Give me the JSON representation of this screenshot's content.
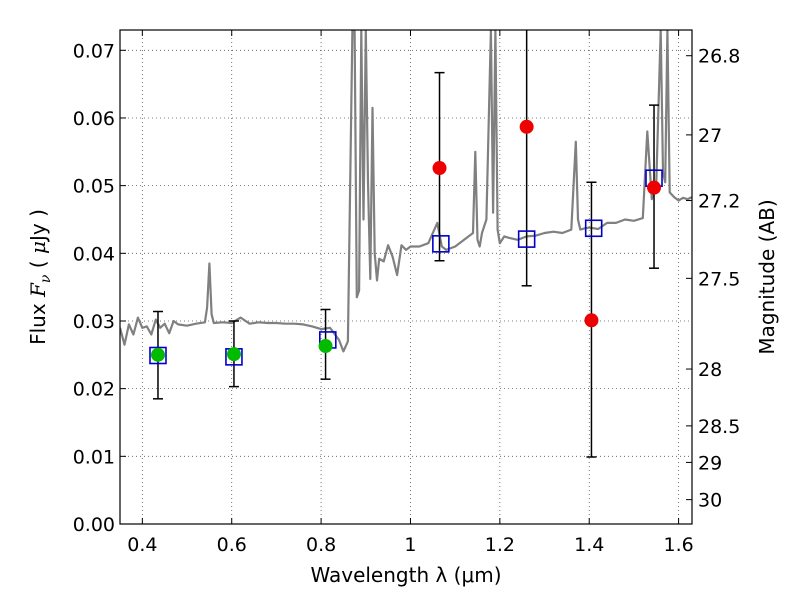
{
  "chart_data": {
    "type": "scatter",
    "xlabel": "Wavelength  λ (μm)",
    "ylabel": "Flux  F_ν  ( μJy )",
    "ylabel_right": "Magnitude (AB)",
    "xlim": [
      0.35,
      1.63
    ],
    "ylim": [
      0.0,
      0.073
    ],
    "grid": true,
    "x_ticks": [
      0.4,
      0.6,
      0.8,
      1.0,
      1.2,
      1.4,
      1.6
    ],
    "x_tick_labels": [
      "0.4",
      "0.6",
      "0.8",
      "1",
      "1.2",
      "1.4",
      "1.6"
    ],
    "y_ticks": [
      0.0,
      0.01,
      0.02,
      0.03,
      0.04,
      0.05,
      0.06,
      0.07
    ],
    "y_tick_labels": [
      "0.00",
      "0.01",
      "0.02",
      "0.03",
      "0.04",
      "0.05",
      "0.06",
      "0.07"
    ],
    "right_ticks": [
      {
        "label": "26.8",
        "flux": 0.0692
      },
      {
        "label": "27",
        "flux": 0.0575
      },
      {
        "label": "27.2",
        "flux": 0.0478
      },
      {
        "label": "27.5",
        "flux": 0.0363
      },
      {
        "label": "28",
        "flux": 0.0229
      },
      {
        "label": "28.5",
        "flux": 0.0145
      },
      {
        "label": "29",
        "flux": 0.0091
      },
      {
        "label": "30",
        "flux": 0.0036
      }
    ],
    "colors": {
      "spectrum": "#808080",
      "errorbar": "#000000",
      "green": "#00bb00",
      "red": "#ee0000",
      "square": "#0000cc",
      "grid": "#555555"
    },
    "series": [
      {
        "marker": "square",
        "x": [
          0.435,
          0.605,
          0.815,
          1.068,
          1.26,
          1.41,
          1.545
        ],
        "y": [
          0.0249,
          0.0247,
          0.0272,
          0.0414,
          0.0421,
          0.0437,
          0.0511
        ]
      },
      {
        "marker": "circle-green",
        "x": [
          0.435,
          0.605,
          0.81
        ],
        "y": [
          0.025,
          0.0251,
          0.0263
        ],
        "err_low": [
          0.0185,
          0.0203,
          0.0214
        ],
        "err_high": [
          0.0314,
          0.03,
          0.0317
        ]
      },
      {
        "marker": "circle-red",
        "x": [
          1.065,
          1.26,
          1.405,
          1.545
        ],
        "y": [
          0.0526,
          0.0587,
          0.0301,
          0.0497
        ],
        "err_low": [
          0.0389,
          0.0352,
          0.0099,
          0.0378
        ],
        "err_high": [
          0.0667,
          0.0735,
          0.0505,
          0.0619
        ]
      },
      {
        "marker": "line",
        "x": [
          0.35,
          0.36,
          0.37,
          0.38,
          0.39,
          0.4,
          0.41,
          0.42,
          0.43,
          0.44,
          0.45,
          0.46,
          0.47,
          0.48,
          0.5,
          0.52,
          0.54,
          0.545,
          0.55,
          0.555,
          0.56,
          0.58,
          0.6,
          0.62,
          0.64,
          0.66,
          0.68,
          0.7,
          0.72,
          0.74,
          0.76,
          0.78,
          0.8,
          0.82,
          0.84,
          0.85,
          0.86,
          0.87,
          0.875,
          0.88,
          0.885,
          0.89,
          0.895,
          0.9,
          0.905,
          0.91,
          0.915,
          0.92,
          0.925,
          0.93,
          0.94,
          0.95,
          0.96,
          0.97,
          0.98,
          0.99,
          1.0,
          1.02,
          1.04,
          1.06,
          1.07,
          1.08,
          1.1,
          1.12,
          1.14,
          1.145,
          1.15,
          1.155,
          1.16,
          1.17,
          1.18,
          1.185,
          1.19,
          1.195,
          1.2,
          1.205,
          1.21,
          1.22,
          1.24,
          1.26,
          1.28,
          1.3,
          1.32,
          1.34,
          1.36,
          1.37,
          1.375,
          1.38,
          1.39,
          1.4,
          1.42,
          1.44,
          1.46,
          1.48,
          1.5,
          1.52,
          1.53,
          1.54,
          1.55,
          1.56,
          1.565,
          1.57,
          1.575,
          1.58,
          1.59,
          1.6,
          1.61,
          1.62,
          1.63
        ],
        "y": [
          0.029,
          0.0265,
          0.0295,
          0.028,
          0.0305,
          0.029,
          0.0292,
          0.028,
          0.0302,
          0.029,
          0.0296,
          0.0282,
          0.03,
          0.0295,
          0.0293,
          0.0296,
          0.0298,
          0.032,
          0.0385,
          0.031,
          0.0297,
          0.0298,
          0.0297,
          0.0305,
          0.0296,
          0.0298,
          0.0297,
          0.0297,
          0.0296,
          0.0296,
          0.0295,
          0.0292,
          0.0288,
          0.029,
          0.0272,
          0.0255,
          0.027,
          0.073,
          0.073,
          0.0335,
          0.0345,
          0.073,
          0.045,
          0.073,
          0.0505,
          0.0362,
          0.0615,
          0.04,
          0.036,
          0.0392,
          0.0388,
          0.0412,
          0.0395,
          0.0368,
          0.0412,
          0.0405,
          0.041,
          0.041,
          0.0415,
          0.0445,
          0.041,
          0.0405,
          0.041,
          0.042,
          0.043,
          0.055,
          0.042,
          0.041,
          0.043,
          0.045,
          0.073,
          0.046,
          0.073,
          0.0435,
          0.0415,
          0.042,
          0.0425,
          0.0423,
          0.042,
          0.0425,
          0.0426,
          0.043,
          0.0432,
          0.043,
          0.0435,
          0.0565,
          0.045,
          0.0435,
          0.0437,
          0.0438,
          0.0436,
          0.0445,
          0.0445,
          0.045,
          0.0448,
          0.0452,
          0.058,
          0.048,
          0.0505,
          0.073,
          0.052,
          0.0505,
          0.073,
          0.049,
          0.0483,
          0.0478,
          0.0482,
          0.048,
          0.0483
        ]
      }
    ]
  }
}
